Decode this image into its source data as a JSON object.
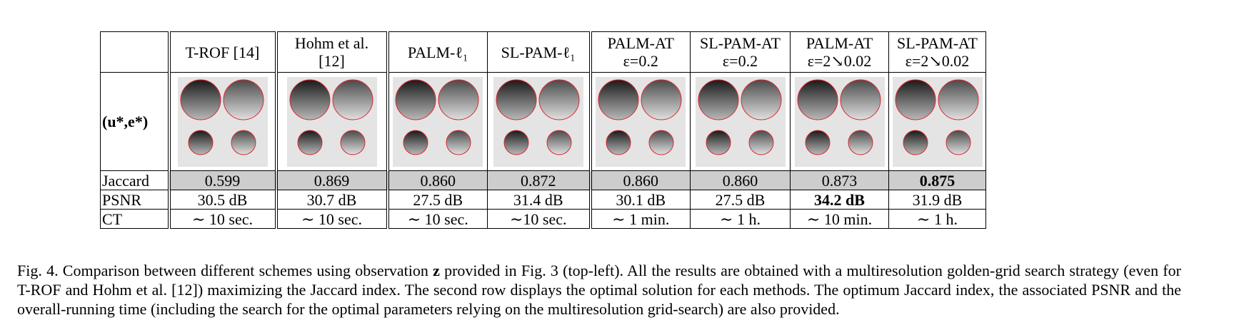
{
  "row_labels": {
    "image": "(u*,e*)",
    "jaccard": "Jaccard",
    "psnr": "PSNR",
    "ct": "CT"
  },
  "methods": [
    {
      "name": "T-ROF [14]",
      "sub": "",
      "jaccard": "0.599",
      "psnr": "30.5 dB",
      "ct": "∼ 10 sec."
    },
    {
      "name": "Hohm et al.",
      "sub": "[12]",
      "jaccard": "0.869",
      "psnr": "30.7 dB",
      "ct": "∼ 10 sec."
    },
    {
      "name": "PALM-ℓ₁",
      "sub": "",
      "jaccard": "0.860",
      "psnr": "27.5 dB",
      "ct": "∼ 10 sec."
    },
    {
      "name": "SL-PAM-ℓ₁",
      "sub": "",
      "jaccard": "0.872",
      "psnr": "31.4 dB",
      "ct": "∼10 sec."
    },
    {
      "name": "PALM-AT",
      "sub": "ε=0.2",
      "jaccard": "0.860",
      "psnr": "30.1 dB",
      "ct": "∼ 1 min."
    },
    {
      "name": "SL-PAM-AT",
      "sub": "ε=0.2",
      "jaccard": "0.860",
      "psnr": "27.5 dB",
      "ct": "∼ 1 h."
    },
    {
      "name": "PALM-AT",
      "sub": "ε=2↘0.02",
      "jaccard": "0.873",
      "psnr": "34.2 dB",
      "ct": "∼ 10 min."
    },
    {
      "name": "SL-PAM-AT",
      "sub": "ε=2↘0.02",
      "jaccard": "0.875",
      "psnr": "31.9 dB",
      "ct": "∼ 1 h."
    }
  ],
  "caption": {
    "prefix": "Fig. 4.  Comparison between different schemes using observation ",
    "symbol": "z",
    "rest": " provided in Fig. 3 (top-left). All the results are obtained with a multiresolution golden-grid search strategy (even for T-ROF and Hohm et al. [12]) maximizing the Jaccard index. The second row displays the optimal solution for each methods. The optimum Jaccard index, the associated PSNR and the overall-running time (including the search for the optimal parameters relying on the multiresolution grid-search) are also provided."
  },
  "colors": {
    "contour": "#d8292f",
    "highlight": "#cdcdcd"
  }
}
